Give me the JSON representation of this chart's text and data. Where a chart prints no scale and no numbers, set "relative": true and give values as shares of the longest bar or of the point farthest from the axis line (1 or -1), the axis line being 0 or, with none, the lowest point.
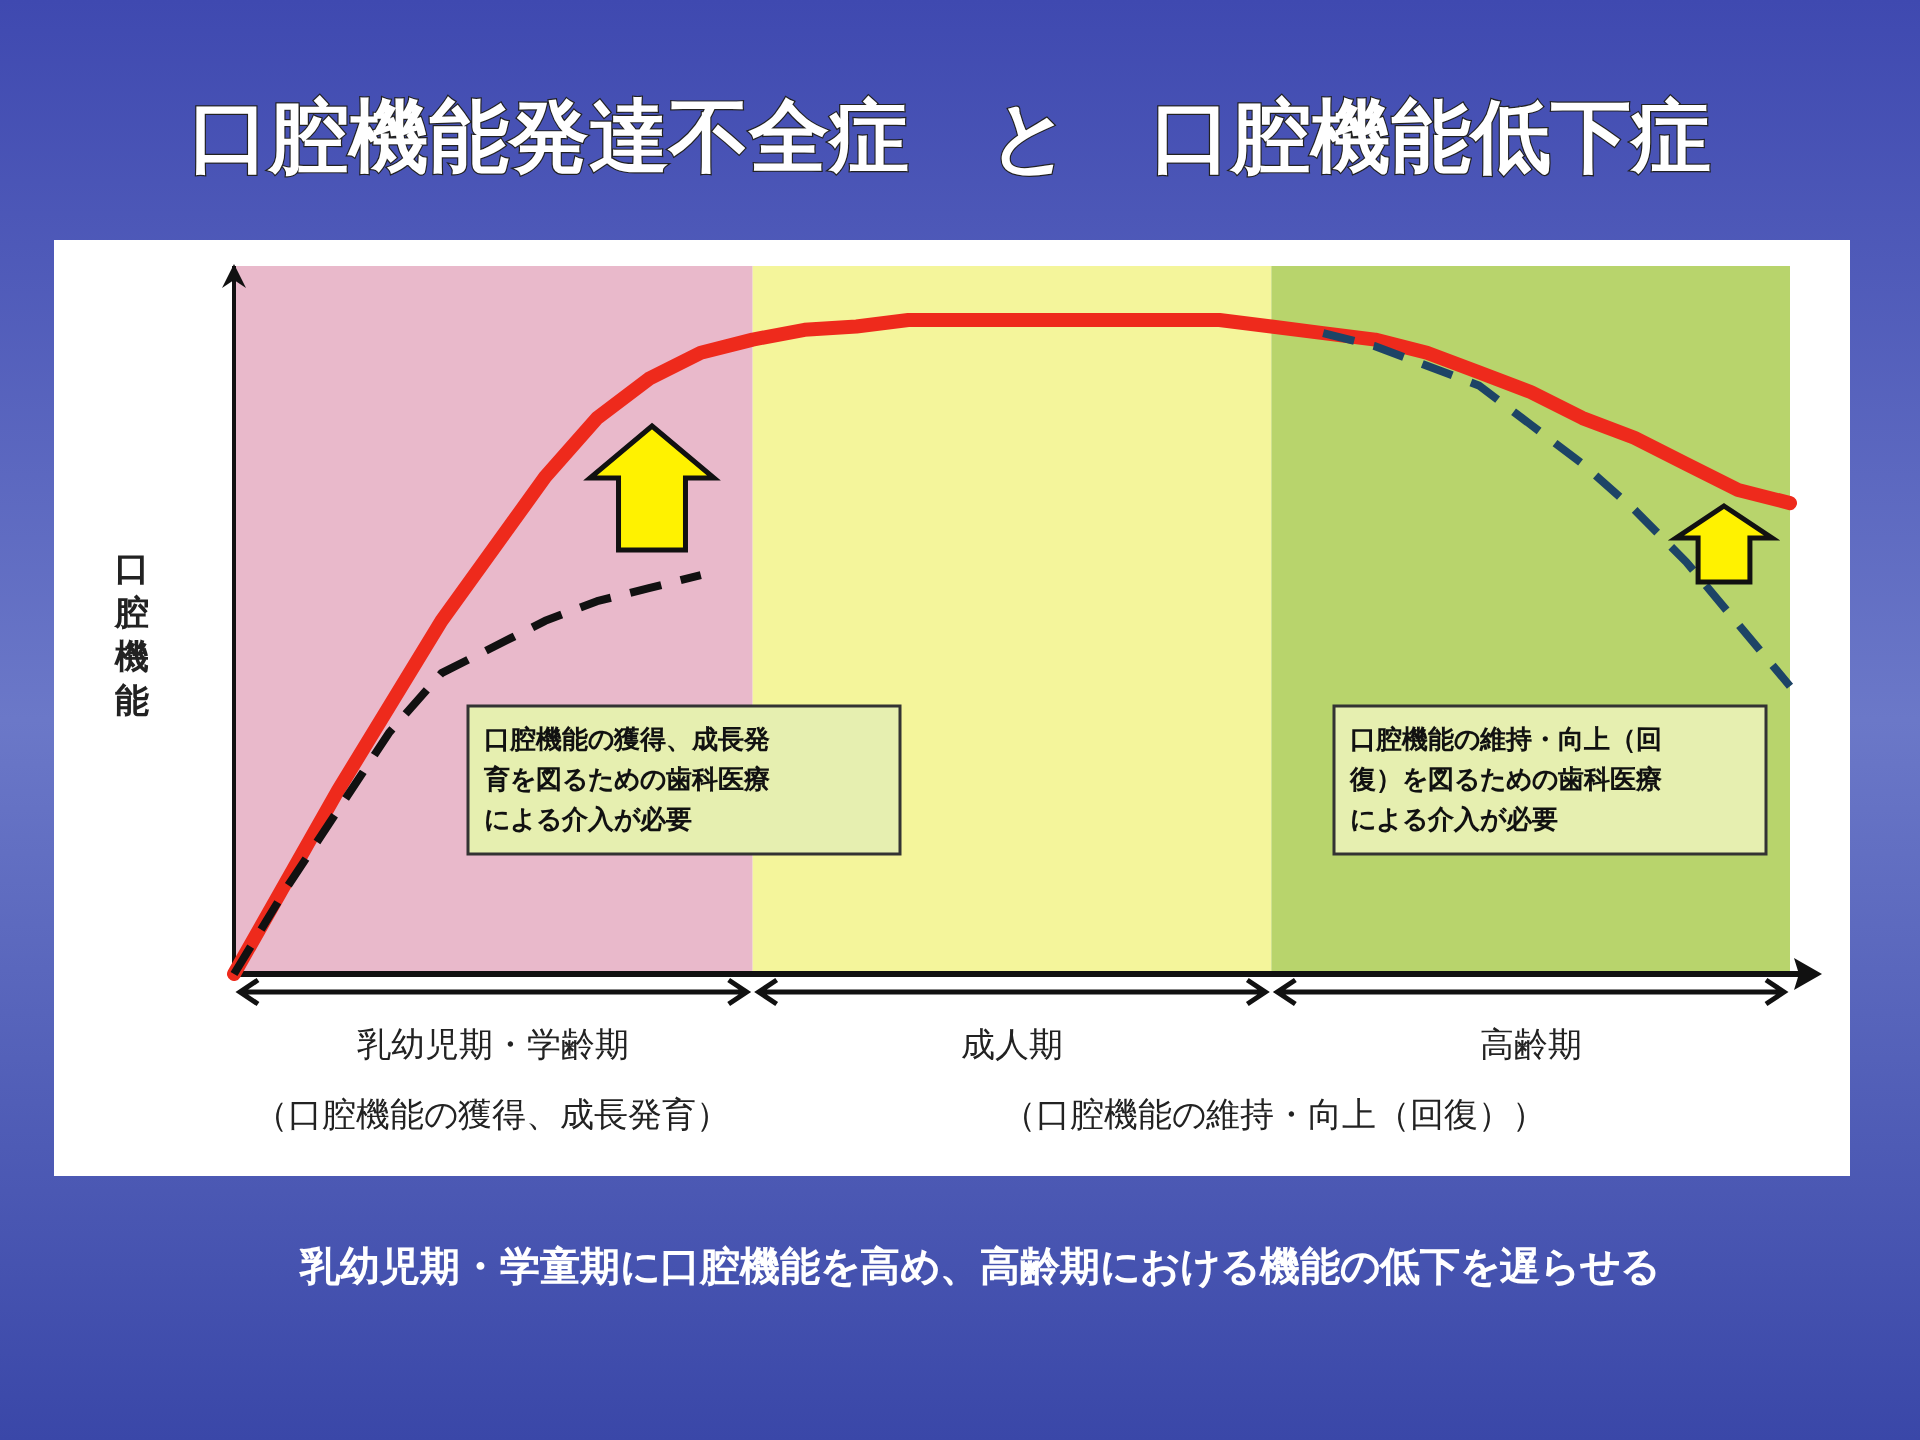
{
  "chart_data": {
    "type": "line",
    "title": "口腔機能発達不全症　と　口腔機能低下症",
    "ylabel": "口腔機能",
    "relative": true,
    "categories": [
      null,
      null,
      null,
      null,
      null,
      null,
      null,
      null,
      null,
      null,
      null,
      null,
      null,
      null,
      null,
      null,
      null,
      null,
      null,
      null,
      null,
      null,
      null,
      null,
      null,
      null,
      null,
      null,
      null,
      null,
      null
    ],
    "series": [
      {
        "color": "#ee2a1c",
        "line_style": "solid",
        "values": [
          0,
          0.14,
          0.28,
          0.41,
          0.54,
          0.65,
          0.76,
          0.85,
          0.91,
          0.95,
          0.97,
          0.985,
          0.99,
          1,
          1,
          1,
          1,
          1,
          1,
          1,
          0.99,
          0.98,
          0.97,
          0.95,
          0.92,
          0.89,
          0.85,
          0.82,
          0.78,
          0.74,
          0.72
        ]
      },
      {
        "color": "#111111",
        "line_style": "dashed",
        "values": [
          0,
          0.13,
          0.25,
          0.37,
          0.46,
          0.5,
          0.54,
          0.57,
          0.59,
          0.61,
          null,
          null,
          null,
          null,
          null,
          null,
          null,
          null,
          null,
          null,
          null,
          null,
          null,
          null,
          null,
          null,
          null,
          null,
          null,
          null,
          null
        ]
      },
      {
        "color": "#1d4466",
        "line_style": "dashed",
        "values": [
          null,
          null,
          null,
          null,
          null,
          null,
          null,
          null,
          null,
          null,
          null,
          null,
          null,
          null,
          null,
          null,
          null,
          null,
          null,
          null,
          null,
          0.98,
          0.96,
          0.93,
          0.9,
          0.84,
          0.78,
          0.71,
          0.63,
          0.535,
          0.44
        ]
      }
    ],
    "annotations": [
      "乳幼児期・学齢期",
      "成人期",
      "高齢期",
      "（口腔機能の獲得、成長発育）",
      "（口腔機能の維持・向上（回復））",
      "口腔機能の獲得、成長発育を図るための歯科医療による介入が必要",
      "口腔機能の維持・向上（回復）を図るための歯科医療による介入が必要",
      "乳幼児期・学童期に口腔機能を高め、高齢期における機能の低下を遅らせる"
    ]
  }
}
